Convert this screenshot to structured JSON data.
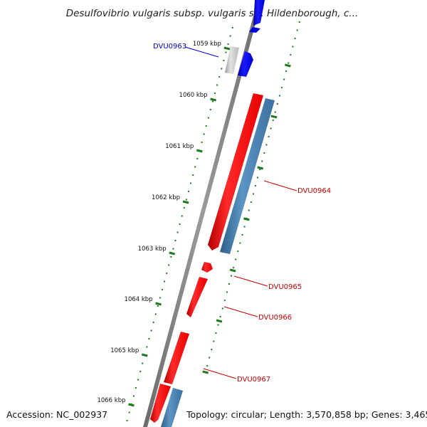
{
  "title": "Desulfovibrio vulgaris subsp. vulgaris str. Hildenborough, c...",
  "ticks": [
    {
      "label": "1059 kbp"
    },
    {
      "label": "1060 kbp"
    },
    {
      "label": "1061 kbp"
    },
    {
      "label": "1062 kbp"
    },
    {
      "label": "1063 kbp"
    },
    {
      "label": "1064 kbp"
    },
    {
      "label": "1065 kbp"
    },
    {
      "label": "1066 kbp"
    }
  ],
  "genes": [
    {
      "label": "DVU0963",
      "color": "#0000cc"
    },
    {
      "label": "DVU0964",
      "color": "#cc0000"
    },
    {
      "label": "DVU0965",
      "color": "#cc0000"
    },
    {
      "label": "DVU0966",
      "color": "#cc0000"
    },
    {
      "label": "DVU0967",
      "color": "#cc0000"
    }
  ],
  "colors": {
    "forward_gene": "#ff1a1a",
    "reverse_gene": "#1010ee",
    "cds_blue": "#4a86b8",
    "cds_gray": "#c8c8c8",
    "backbone": "#808080",
    "tick_mark": "#1f7a1f"
  },
  "footer": {
    "accession": "Accession: NC_002937",
    "topology": "Topology: circular; Length: 3,570,858 bp; Genes: 3,465"
  }
}
